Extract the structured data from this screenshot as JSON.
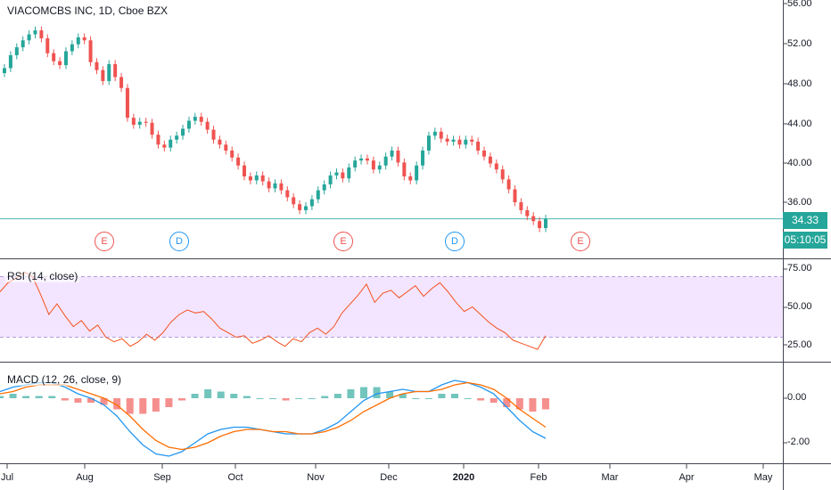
{
  "symbol_title": "VIACOMCBS INC, 1D, Cboe BZX",
  "price_axis": [
    "56.00",
    "52.00",
    "48.00",
    "44.00",
    "40.00",
    "36.00"
  ],
  "last_price": "34.33",
  "countdown": "05:10:05",
  "rsi_legend": "RSI (14, close)",
  "rsi_axis": [
    "75.00",
    "50.00",
    "25.00"
  ],
  "macd_legend": "MACD (12, 26, close, 9)",
  "macd_axis": [
    "0.00",
    "-2.00"
  ],
  "time_axis": [
    "Jul",
    "Aug",
    "Sep",
    "Oct",
    "Nov",
    "Dec",
    "2020",
    "Feb",
    "Mar",
    "Apr",
    "May"
  ],
  "events": [
    {
      "type": "E",
      "kind": "earnings"
    },
    {
      "type": "D",
      "kind": "dividend"
    },
    {
      "type": "E",
      "kind": "earnings"
    },
    {
      "type": "D",
      "kind": "dividend"
    },
    {
      "type": "E",
      "kind": "earnings"
    }
  ],
  "colors": {
    "up": "#26a69a",
    "down": "#ef5350",
    "rsi_line": "#f4511e",
    "rsi_band": "#f3e5ff",
    "macd_line": "#2196f3",
    "signal_line": "#ff6d00",
    "price_line": "#26a69a",
    "earnings": "#ef5350",
    "dividend": "#2196f3"
  },
  "chart_data": [
    {
      "type": "candlestick",
      "title": "VIACOMCBS INC, 1D, Cboe BZX",
      "ylim": [
        32,
        56
      ],
      "close_series": [
        49.5,
        50.8,
        51.6,
        52.3,
        52.9,
        53.3,
        52.5,
        51.0,
        50.2,
        49.8,
        51.2,
        51.9,
        52.6,
        52.3,
        50.1,
        49.3,
        48.2,
        49.9,
        48.6,
        47.5,
        44.5,
        43.8,
        44.1,
        44.0,
        42.8,
        41.8,
        41.5,
        42.3,
        42.7,
        43.4,
        44.2,
        44.6,
        44.1,
        43.3,
        42.3,
        41.8,
        41.2,
        40.5,
        39.7,
        38.6,
        38.2,
        38.7,
        38.1,
        37.4,
        37.9,
        37.2,
        36.5,
        35.8,
        35.2,
        35.6,
        36.3,
        37.2,
        37.8,
        38.7,
        39.0,
        38.4,
        39.5,
        40.2,
        40.4,
        40.2,
        39.3,
        39.7,
        40.6,
        41.2,
        40.0,
        38.6,
        38.2,
        39.7,
        41.2,
        42.7,
        43.1,
        42.4,
        42.1,
        42.3,
        41.8,
        42.3,
        42.1,
        41.2,
        40.6,
        39.9,
        39.3,
        38.3,
        37.3,
        36.0,
        35.2,
        34.6,
        34.1,
        33.4,
        34.33
      ],
      "last_price": 34.33
    },
    {
      "type": "line",
      "title": "RSI (14, close)",
      "ylim": [
        15,
        80
      ],
      "band": [
        30,
        70
      ],
      "values": [
        60,
        66,
        69,
        73,
        70,
        58,
        45,
        52,
        44,
        37,
        41,
        34,
        38,
        30,
        27,
        29,
        24,
        27,
        32,
        28,
        33,
        40,
        45,
        48,
        46,
        47,
        42,
        36,
        33,
        30,
        31,
        26,
        28,
        31,
        27,
        24,
        29,
        27,
        33,
        36,
        32,
        37,
        46,
        52,
        58,
        65,
        53,
        59,
        61,
        56,
        60,
        64,
        57,
        62,
        66,
        60,
        53,
        47,
        50,
        45,
        40,
        36,
        33,
        28,
        26,
        24,
        22,
        31
      ]
    },
    {
      "type": "line",
      "title": "MACD (12, 26, close, 9)",
      "ylim": [
        -3,
        1.5
      ],
      "series": [
        {
          "name": "MACD",
          "values": [
            0.3,
            0.5,
            0.6,
            0.7,
            0.7,
            0.5,
            0.2,
            0.0,
            -0.3,
            -0.8,
            -1.5,
            -2.1,
            -2.5,
            -2.6,
            -2.4,
            -2.0,
            -1.6,
            -1.4,
            -1.3,
            -1.3,
            -1.4,
            -1.5,
            -1.6,
            -1.6,
            -1.6,
            -1.4,
            -1.1,
            -0.6,
            -0.1,
            0.2,
            0.3,
            0.4,
            0.3,
            0.3,
            0.6,
            0.8,
            0.7,
            0.5,
            0.2,
            -0.4,
            -1.0,
            -1.5,
            -1.8
          ]
        },
        {
          "name": "Signal",
          "values": [
            0.2,
            0.3,
            0.5,
            0.6,
            0.6,
            0.6,
            0.4,
            0.2,
            0.0,
            -0.3,
            -0.8,
            -1.4,
            -1.9,
            -2.2,
            -2.3,
            -2.2,
            -2.0,
            -1.7,
            -1.5,
            -1.4,
            -1.4,
            -1.5,
            -1.5,
            -1.6,
            -1.6,
            -1.5,
            -1.3,
            -1.0,
            -0.6,
            -0.3,
            0.0,
            0.2,
            0.3,
            0.3,
            0.4,
            0.6,
            0.7,
            0.6,
            0.4,
            0.0,
            -0.5,
            -0.9,
            -1.3
          ]
        }
      ],
      "histogram": [
        0.1,
        0.2,
        0.1,
        0.1,
        0.1,
        -0.1,
        -0.2,
        -0.2,
        -0.3,
        -0.5,
        -0.7,
        -0.7,
        -0.6,
        -0.4,
        -0.1,
        0.2,
        0.4,
        0.3,
        0.2,
        0.1,
        0.0,
        0.0,
        -0.1,
        0.0,
        0.0,
        0.1,
        0.2,
        0.4,
        0.5,
        0.5,
        0.3,
        0.2,
        0.0,
        0.0,
        0.2,
        0.2,
        0.0,
        -0.1,
        -0.2,
        -0.4,
        -0.5,
        -0.6,
        -0.5
      ]
    }
  ]
}
